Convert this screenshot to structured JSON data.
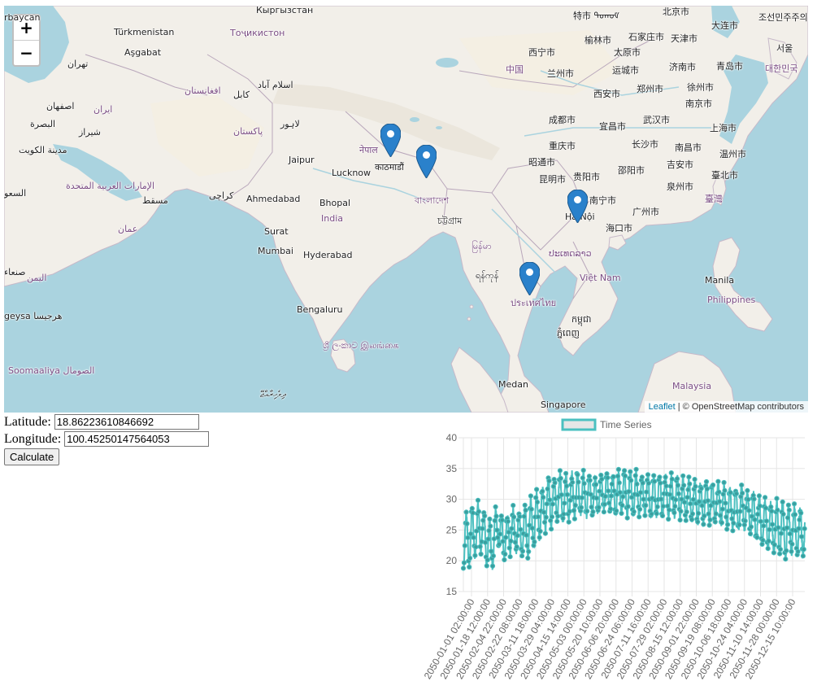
{
  "map": {
    "zoom_in_label": "+",
    "zoom_out_label": "−",
    "attribution": {
      "leaflet": "Leaflet",
      "separator": " | ",
      "osm": "© OpenStreetMap contributors"
    },
    "labels": [
      {
        "name": "label-turkmenistan",
        "text": "Türkmenistan"
      },
      {
        "name": "label-ashgabat",
        "text": "Aşgabat"
      },
      {
        "name": "label-tajikistan",
        "text": "Тоҷикистон"
      },
      {
        "name": "label-tehran",
        "text": "تهران"
      },
      {
        "name": "label-islamabad",
        "text": "اسلام آباد"
      },
      {
        "name": "label-kabul",
        "text": "کابل"
      },
      {
        "name": "label-afghanistan",
        "text": "افغانستان"
      },
      {
        "name": "label-isfahan",
        "text": "اصفهان"
      },
      {
        "name": "label-iran",
        "text": "ایران"
      },
      {
        "name": "label-basra",
        "text": "البصرة"
      },
      {
        "name": "label-shiraz",
        "text": "شیراز"
      },
      {
        "name": "label-kuwait",
        "text": "مدينة الكويت"
      },
      {
        "name": "label-lahore",
        "text": "لاہور"
      },
      {
        "name": "label-pakistan",
        "text": "پاکستان"
      },
      {
        "name": "label-uae",
        "text": "الإمارات العربية المتحدة"
      },
      {
        "name": "label-muscat",
        "text": "مسقط"
      },
      {
        "name": "label-oman",
        "text": "عمان"
      },
      {
        "name": "label-karachi",
        "text": "کراچی"
      },
      {
        "name": "label-jaipur",
        "text": "Jaipur"
      },
      {
        "name": "label-lucknow",
        "text": "Lucknow"
      },
      {
        "name": "label-nepal",
        "text": "नेपाल"
      },
      {
        "name": "label-kathmandu",
        "text": "काठमाडौं"
      },
      {
        "name": "label-ahmedabad",
        "text": "Ahmedabad"
      },
      {
        "name": "label-bhopal",
        "text": "Bhopal"
      },
      {
        "name": "label-india",
        "text": "India"
      },
      {
        "name": "label-surat",
        "text": "Surat"
      },
      {
        "name": "label-mumbai",
        "text": "Mumbai"
      },
      {
        "name": "label-hyderabad",
        "text": "Hyderabad"
      },
      {
        "name": "label-bengaluru",
        "text": "Bengaluru"
      },
      {
        "name": "label-srilanka",
        "text": "ශ්‍රී ලංකාව இலங்கை"
      },
      {
        "name": "label-maldives",
        "text": "ދިވެހިރާއްޖޭ"
      },
      {
        "name": "label-bangladesh",
        "text": "বাংলাদেশ"
      },
      {
        "name": "label-chittagong",
        "text": "চট্টগ্রাম"
      },
      {
        "name": "label-myanmar",
        "text": "မြန်မာ"
      },
      {
        "name": "label-yangon",
        "text": "ရန်ကုန်"
      },
      {
        "name": "label-thailand",
        "text": "ประเทศไทย"
      },
      {
        "name": "label-laos",
        "text": "ປະເທດລາວ"
      },
      {
        "name": "label-vietnam",
        "text": "Việt Nam"
      },
      {
        "name": "label-hanoi",
        "text": "Hà Nội"
      },
      {
        "name": "label-cambodia",
        "text": "កម្ពុជា"
      },
      {
        "name": "label-phnompenh",
        "text": "ភ្នំពេញ"
      },
      {
        "name": "label-medan",
        "text": "Medan"
      },
      {
        "name": "label-singapore",
        "text": "Singapore"
      },
      {
        "name": "label-malaysia",
        "text": "Malaysia"
      },
      {
        "name": "label-manila",
        "text": "Manila"
      },
      {
        "name": "label-philippines",
        "text": "Philippines"
      },
      {
        "name": "label-china",
        "text": "中国"
      },
      {
        "name": "label-xining",
        "text": "西宁市"
      },
      {
        "name": "label-lanzhou",
        "text": "兰州市"
      },
      {
        "name": "label-beijing",
        "text": "北京市"
      },
      {
        "name": "label-tianjin",
        "text": "天津市"
      },
      {
        "name": "label-shijiazhuang",
        "text": "石家庄市"
      },
      {
        "name": "label-yulin",
        "text": "榆林市"
      },
      {
        "name": "label-taiyuan",
        "text": "太原市"
      },
      {
        "name": "label-jinan",
        "text": "济南市"
      },
      {
        "name": "label-qingdao",
        "text": "青岛市"
      },
      {
        "name": "label-yuncheng",
        "text": "运城市"
      },
      {
        "name": "label-xian",
        "text": "西安市"
      },
      {
        "name": "label-zhengzhou",
        "text": "郑州市"
      },
      {
        "name": "label-xuzhou",
        "text": "徐州市"
      },
      {
        "name": "label-nanjing",
        "text": "南京市"
      },
      {
        "name": "label-shanghai",
        "text": "上海市"
      },
      {
        "name": "label-chengdu",
        "text": "成都市"
      },
      {
        "name": "label-yichang",
        "text": "宜昌市"
      },
      {
        "name": "label-wuhan",
        "text": "武汉市"
      },
      {
        "name": "label-chongqing",
        "text": "重庆市"
      },
      {
        "name": "label-changsha",
        "text": "长沙市"
      },
      {
        "name": "label-nanchang",
        "text": "南昌市"
      },
      {
        "name": "label-wenzhou",
        "text": "温州市"
      },
      {
        "name": "label-zhaotong",
        "text": "昭通市"
      },
      {
        "name": "label-guiyang",
        "text": "贵阳市"
      },
      {
        "name": "label-shaoyang",
        "text": "邵阳市"
      },
      {
        "name": "label-jian",
        "text": "吉安市"
      },
      {
        "name": "label-taipei",
        "text": "臺北市"
      },
      {
        "name": "label-kunming",
        "text": "昆明市"
      },
      {
        "name": "label-nanning",
        "text": "南宁市"
      },
      {
        "name": "label-quanzhou",
        "text": "泉州市"
      },
      {
        "name": "label-taiwan",
        "text": "臺灣"
      },
      {
        "name": "label-guangzhou",
        "text": "广州市"
      },
      {
        "name": "label-haikou",
        "text": "海口市"
      },
      {
        "name": "label-dalian",
        "text": "大连市"
      },
      {
        "name": "label-korea",
        "text": "조선민주주의인민공화국"
      },
      {
        "name": "label-seoul",
        "text": "서울"
      },
      {
        "name": "label-southkorea",
        "text": "대한민국"
      },
      {
        "name": "label-tete",
        "text": "特市 ᠳᠣᠬᠣᠮ"
      },
      {
        "name": "label-azerbaijan",
        "text": "rbaycan"
      },
      {
        "name": "label-kyrgyz",
        "text": "Кыргызстан"
      },
      {
        "name": "label-somalia",
        "text": "Soomaaliya الصومال"
      },
      {
        "name": "label-yemen",
        "text": "اليمن"
      },
      {
        "name": "label-sanaa",
        "text": "صنعاء"
      },
      {
        "name": "label-saudi",
        "text": "السعو"
      },
      {
        "name": "label-hargeisa",
        "text": "geysa هرجيسا"
      }
    ],
    "marker_color": "#2a81cb"
  },
  "form": {
    "latitude_label": "Latitude:",
    "latitude_value": "18.86223610846692",
    "longitude_label": "Longitude:",
    "longitude_value": "100.45250147564053",
    "calculate_label": "Calculate"
  },
  "chart_data": {
    "type": "line",
    "legend": "Time Series",
    "series_color": "#4bc0c0",
    "ylim": [
      15,
      40
    ],
    "yticks": [
      15,
      20,
      25,
      30,
      35,
      40
    ],
    "x_tick_labels": [
      "2050-01-01 02:00:00",
      "2050-01-18 12:00:00",
      "2050-02-04 22:00:00",
      "2050-02-22 08:00:00",
      "2050-03-11 18:00:00",
      "2050-03-29 04:00:00",
      "2050-04-15 14:00:00",
      "2050-05-03 00:00:00",
      "2050-05-20 10:00:00",
      "2050-06-06 20:00:00",
      "2050-06-24 06:00:00",
      "2050-07-11 16:00:00",
      "2050-07-29 02:00:00",
      "2050-08-15 12:00:00",
      "2050-09-01 22:00:00",
      "2050-09-19 08:00:00",
      "2050-10-06 18:00:00",
      "2050-10-24 04:00:00",
      "2050-11-10 14:00:00",
      "2050-11-28 00:00:00",
      "2050-12-15 10:00:00"
    ],
    "envelope": {
      "note_x": "fraction of the year 0..1",
      "x": [
        0.0,
        0.02,
        0.05,
        0.08,
        0.1,
        0.12,
        0.14,
        0.17,
        0.19,
        0.22,
        0.25,
        0.28,
        0.3,
        0.33,
        0.37,
        0.42,
        0.48,
        0.55,
        0.62,
        0.68,
        0.74,
        0.78,
        0.82,
        0.86,
        0.9,
        0.94,
        0.97,
        1.0
      ],
      "high": [
        29,
        30,
        31,
        28,
        31,
        27,
        30,
        29,
        31,
        33,
        35,
        36,
        35,
        36,
        35,
        35,
        36,
        35,
        35,
        34,
        34,
        33,
        33,
        32,
        31,
        31,
        30,
        30
      ],
      "low": [
        17,
        18,
        20,
        16,
        21,
        19,
        20,
        20,
        19,
        22,
        24,
        25,
        25,
        26,
        26,
        27,
        26,
        26,
        26,
        25,
        25,
        24,
        24,
        22,
        20,
        19,
        20,
        19
      ]
    }
  }
}
